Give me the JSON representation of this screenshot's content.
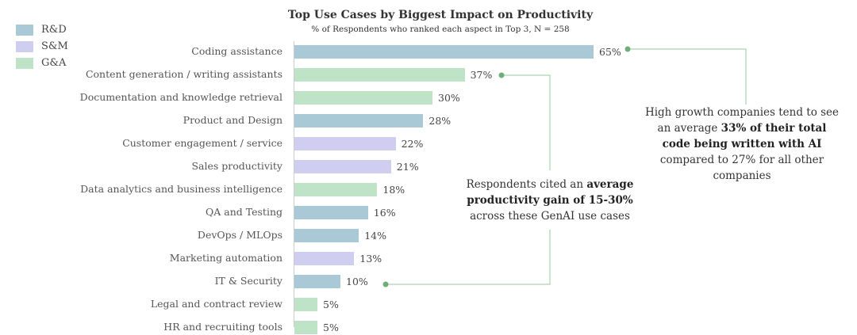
{
  "colors": {
    "R&D": "#a9c9d6",
    "S&M": "#cfcdf0",
    "G&A": "#bfe3c6",
    "connector": "#a7d3ad",
    "dot": "#6fae7b"
  },
  "chart_data": {
    "type": "bar",
    "orientation": "horizontal",
    "title": "Top Use Cases by Biggest Impact on Productivity",
    "subtitle": "% of Respondents who ranked each aspect in Top 3, N = 258",
    "legend": {
      "placement": "top-left",
      "entries": [
        "R&D",
        "S&M",
        "G&A"
      ]
    },
    "xlim": [
      0,
      65
    ],
    "categories": [
      "Coding assistance",
      "Content generation / writing assistants",
      "Documentation and knowledge retrieval",
      "Product and Design",
      "Customer engagement / service",
      "Sales productivity",
      "Data analytics and business intelligence",
      "QA and Testing",
      "DevOps / MLOps",
      "Marketing automation",
      "IT & Security",
      "Legal and contract review",
      "HR and recruiting tools"
    ],
    "values": [
      65,
      37,
      30,
      28,
      22,
      21,
      18,
      16,
      14,
      13,
      10,
      5,
      5
    ],
    "labels": [
      "65%",
      "37%",
      "30%",
      "28%",
      "22%",
      "21%",
      "18%",
      "16%",
      "14%",
      "13%",
      "10%",
      "5%",
      "5%"
    ],
    "groups": [
      "R&D",
      "G&A",
      "G&A",
      "R&D",
      "S&M",
      "S&M",
      "G&A",
      "R&D",
      "R&D",
      "S&M",
      "R&D",
      "G&A",
      "G&A"
    ]
  },
  "annotations": {
    "growth": {
      "pre": "High growth companies tend to see an average ",
      "bold": "33% of their total code being written with AI",
      "post": " compared to 27% for all other companies"
    },
    "gain": {
      "pre": "Respondents cited an ",
      "bold": "average productivity gain of 15-30%",
      "post": " across these GenAI use cases"
    }
  }
}
